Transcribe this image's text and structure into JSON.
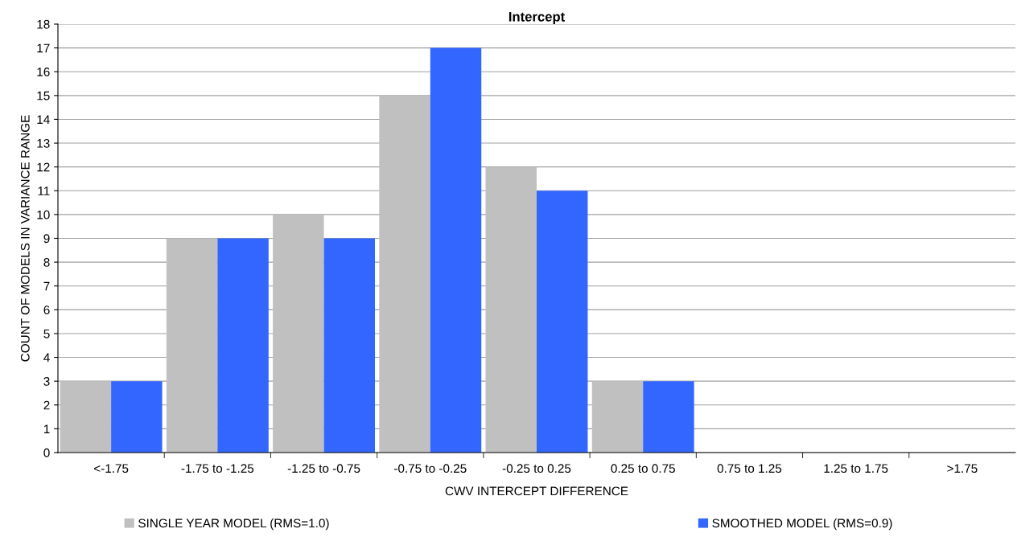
{
  "chart_data": {
    "type": "bar",
    "title": "Intercept",
    "xlabel": "CWV INTERCEPT DIFFERENCE",
    "ylabel": "COUNT OF MODELS IN VARIANCE RANGE",
    "categories": [
      "<-1.75",
      "-1.75 to -1.25",
      "-1.25 to -0.75",
      "-0.75 to -0.25",
      "-0.25 to 0.25",
      "0.25 to 0.75",
      "0.75 to 1.25",
      "1.25 to 1.75",
      ">1.75"
    ],
    "series": [
      {
        "name": "SINGLE YEAR MODEL (RMS=1.0)",
        "color": "#c0c0c0",
        "values": [
          3,
          9,
          10,
          15,
          12,
          3,
          0,
          0,
          0
        ]
      },
      {
        "name": "SMOOTHED MODEL (RMS=0.9)",
        "color": "#3366ff",
        "values": [
          3,
          9,
          9,
          17,
          11,
          3,
          0,
          0,
          0
        ]
      }
    ],
    "ylim": [
      0,
      18
    ],
    "yticks": [
      0,
      1,
      2,
      3,
      4,
      5,
      6,
      7,
      8,
      9,
      10,
      11,
      12,
      13,
      14,
      15,
      16,
      17,
      18
    ],
    "grid": "y",
    "legend": "bottom"
  }
}
